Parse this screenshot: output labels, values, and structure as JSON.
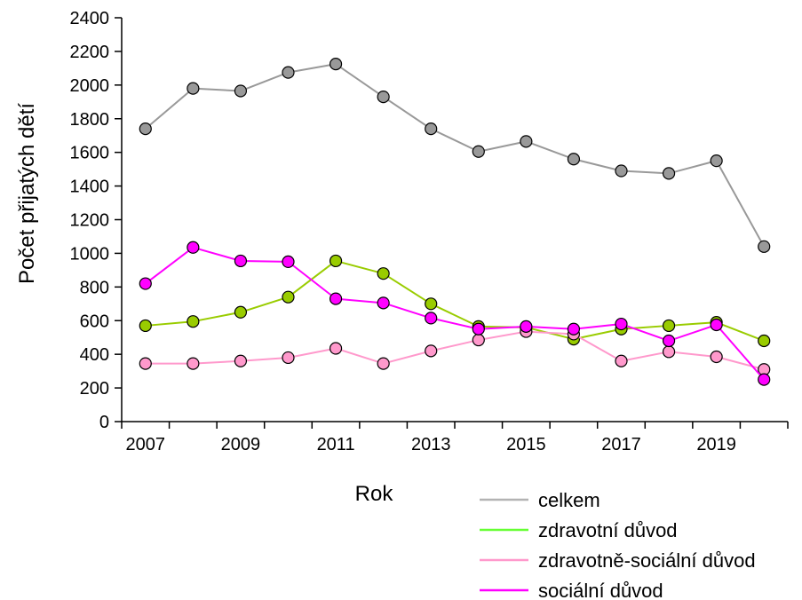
{
  "chart_data": {
    "type": "line",
    "title": "",
    "xlabel": "Rok",
    "ylabel": "Počet přijatých dětí",
    "x": [
      2007,
      2008,
      2009,
      2010,
      2011,
      2012,
      2013,
      2014,
      2015,
      2016,
      2017,
      2018,
      2019,
      2020
    ],
    "x_ticks": [
      "2007",
      "2009",
      "2011",
      "2013",
      "2015",
      "2017",
      "2019"
    ],
    "x_range": [
      2006.5,
      2020.5
    ],
    "ylim": [
      0,
      2400
    ],
    "y_ticks": [
      "0",
      "200",
      "400",
      "600",
      "800",
      "1000",
      "1200",
      "1400",
      "1600",
      "1800",
      "2000",
      "2200",
      "2400"
    ],
    "grid": false,
    "legend_position": "bottom-right",
    "series": [
      {
        "name": "celkem",
        "color": "#999999",
        "values": [
          1740,
          1980,
          1965,
          2075,
          2125,
          1930,
          1740,
          1605,
          1665,
          1560,
          1490,
          1475,
          1550,
          1040
        ]
      },
      {
        "name": "zdravotní důvod",
        "color": "#99cc00",
        "values": [
          570,
          595,
          650,
          740,
          955,
          880,
          700,
          565,
          560,
          490,
          550,
          570,
          590,
          480
        ]
      },
      {
        "name": "zdravotně-sociální důvod",
        "color": "#ff99cc",
        "values": [
          345,
          345,
          360,
          380,
          435,
          345,
          420,
          485,
          535,
          520,
          360,
          415,
          385,
          310
        ]
      },
      {
        "name": "sociální důvod",
        "color": "#ff00ff",
        "values": [
          820,
          1035,
          955,
          950,
          730,
          705,
          615,
          550,
          565,
          550,
          580,
          480,
          575,
          250
        ]
      }
    ],
    "legend_colors": [
      "#b3b3b3",
      "#66ff33",
      "#ff99cc",
      "#ff00ff"
    ]
  }
}
